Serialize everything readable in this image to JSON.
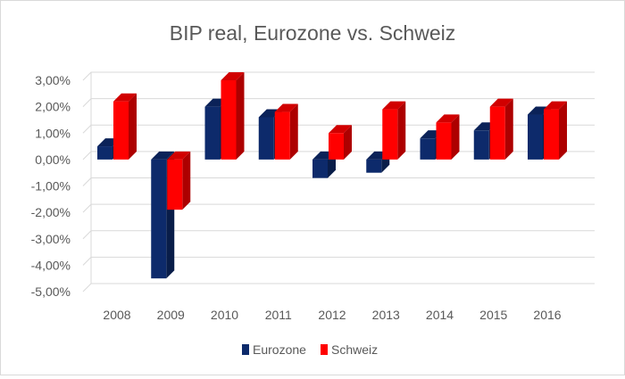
{
  "chart_data": {
    "type": "bar",
    "title": "BIP real, Eurozone vs. Schweiz",
    "xlabel": "",
    "ylabel": "",
    "categories": [
      "2008",
      "2009",
      "2010",
      "2011",
      "2012",
      "2013",
      "2014",
      "2015",
      "2016"
    ],
    "series": [
      {
        "name": "Eurozone",
        "color": "#0d2a6b",
        "values": [
          0.5,
          -4.5,
          2.0,
          1.6,
          -0.7,
          -0.5,
          0.8,
          1.1,
          1.7
        ]
      },
      {
        "name": "Schweiz",
        "color": "#ff0000",
        "values": [
          2.2,
          -1.9,
          3.0,
          1.8,
          1.0,
          1.9,
          1.4,
          2.0,
          1.9
        ]
      }
    ],
    "ylim": [
      -5,
      3
    ],
    "y_ticks": [
      "3,00%",
      "2,00%",
      "1,00%",
      "0,00%",
      "-1,00%",
      "-2,00%",
      "-3,00%",
      "-4,00%",
      "-5,00%"
    ],
    "y_tick_values": [
      3,
      2,
      1,
      0,
      -1,
      -2,
      -3,
      -4,
      -5
    ],
    "grid": true,
    "legend_position": "bottom",
    "style": "3d-columns"
  }
}
